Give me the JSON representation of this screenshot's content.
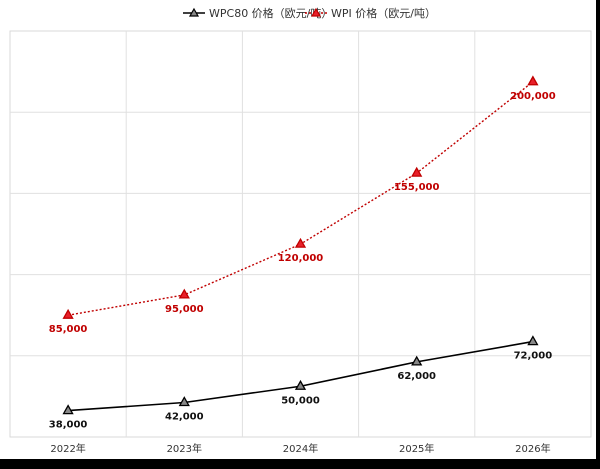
{
  "chart_data": {
    "type": "line",
    "categories": [
      "2022年",
      "2023年",
      "2024年",
      "2025年",
      "2026年"
    ],
    "series": [
      {
        "name": "WPC80 价格（欧元/吨）",
        "values": [
          38000,
          42000,
          50000,
          62000,
          72000
        ],
        "labels": [
          "38,000",
          "42,000",
          "50,000",
          "62,000",
          "72,000"
        ],
        "color": "#000000",
        "line_style": "solid",
        "marker": "triangle",
        "marker_fill": "#888888"
      },
      {
        "name": "WPI 价格（欧元/吨）",
        "values": [
          85000,
          95000,
          120000,
          155000,
          200000
        ],
        "labels": [
          "85,000",
          "95,000",
          "120,000",
          "155,000",
          "200,000"
        ],
        "color": "#c00000",
        "line_style": "dotted",
        "marker": "triangle",
        "marker_fill": "#e8202a"
      }
    ],
    "ylim": [
      25000,
      225000
    ],
    "y_tick_labels_visible": false,
    "grid": true,
    "legend_position": "top-center"
  }
}
